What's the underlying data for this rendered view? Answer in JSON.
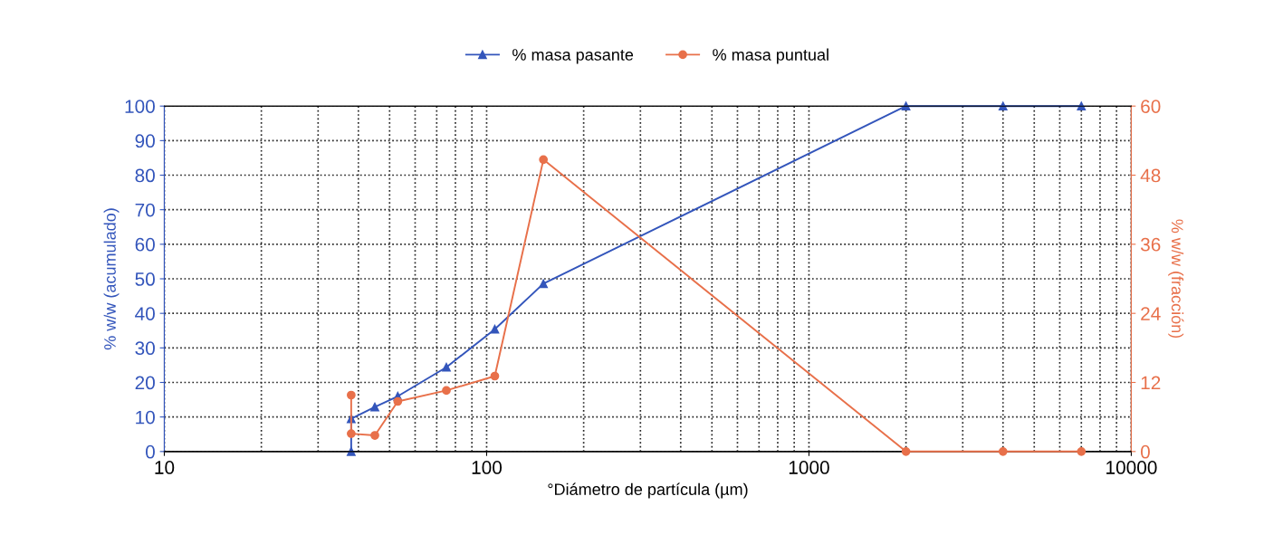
{
  "chart_data": {
    "type": "line",
    "xlabel": "°Diámetro de partícula (µm)",
    "ylabel": "% w/w (acumulado)",
    "y2label": "% w/w (fracción)",
    "log": "x",
    "grid": true,
    "legend": "top",
    "xlim": [
      10,
      10000
    ],
    "xticks": [
      10,
      100,
      1000,
      10000
    ],
    "ylim": [
      0,
      100
    ],
    "yticks": [
      0,
      10,
      20,
      30,
      40,
      50,
      60,
      70,
      80,
      90,
      100
    ],
    "y2lim": [
      0,
      60
    ],
    "y2ticks": [
      0,
      12,
      24,
      36,
      48,
      60
    ],
    "series": [
      {
        "name": "% masa pasante",
        "color": "#3355bb",
        "marker": "triangle",
        "x": [
          38,
          38,
          45,
          53,
          75,
          106,
          150,
          2000,
          4000,
          7000
        ],
        "values": [
          0,
          9.5,
          12.9,
          16,
          24.4,
          35.4,
          48.6,
          100,
          100,
          100
        ]
      },
      {
        "name": "% masa puntual",
        "color": "#e8704a",
        "marker": "circle",
        "axis": "y2",
        "x": [
          38,
          38,
          45,
          53,
          75,
          106,
          150,
          2000,
          4000,
          7000
        ],
        "values": [
          9.8,
          3.1,
          2.8,
          8.7,
          10.6,
          13.1,
          50.7,
          0,
          0,
          0
        ]
      }
    ]
  }
}
